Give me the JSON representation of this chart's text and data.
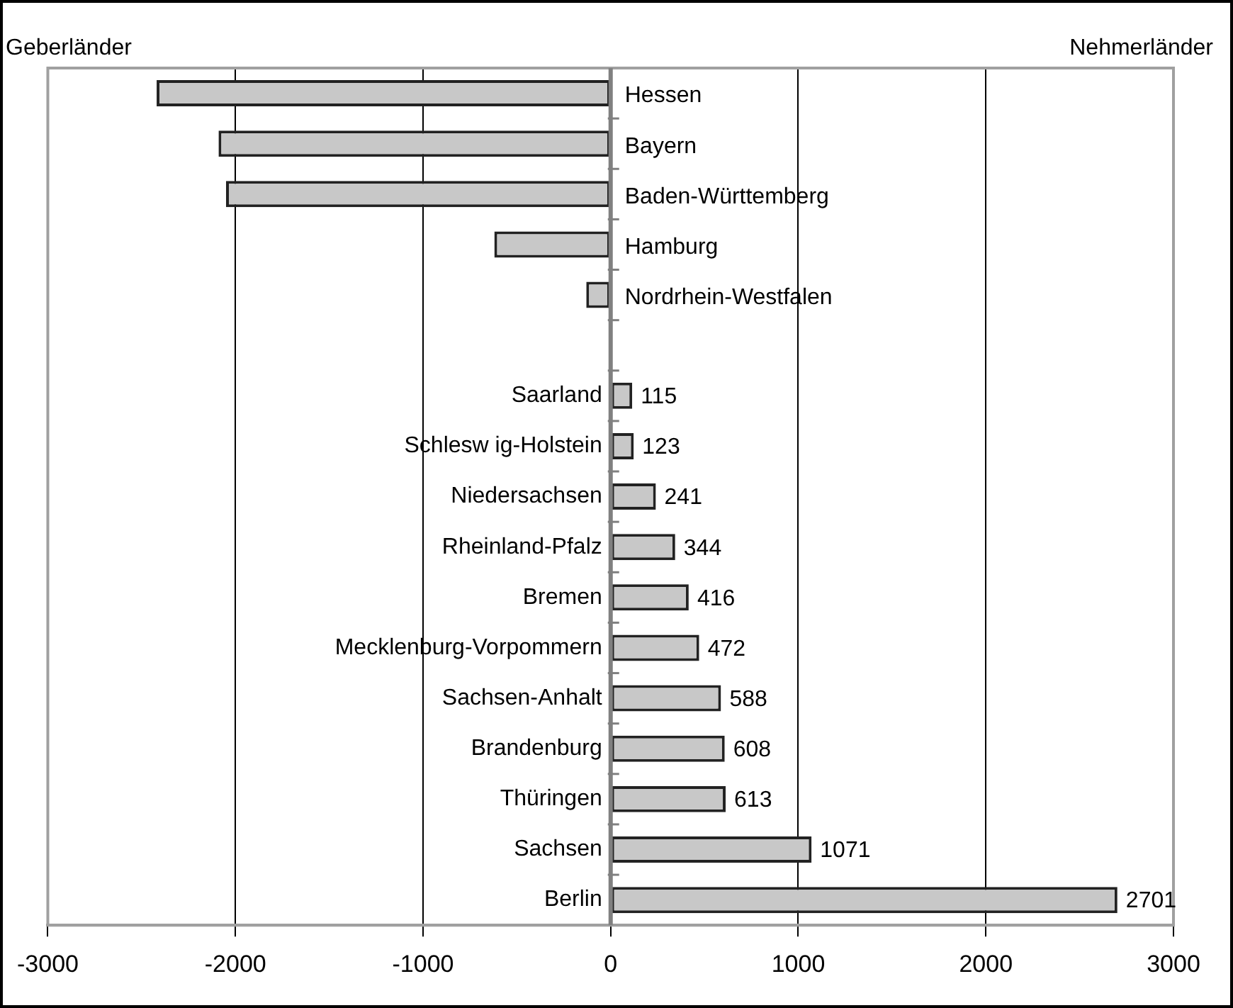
{
  "chart_data": {
    "type": "bar",
    "orientation": "horizontal",
    "categories": [
      "Hessen",
      "Bayern",
      "Baden-Württemberg",
      "Hamburg",
      "Nordrhein-Westfalen",
      null,
      "Saarland",
      "Schlesw ig-Holstein",
      "Niedersachsen",
      "Rheinland-Pfalz",
      "Bremen",
      "Mecklenburg-Vorpommern",
      "Sachsen-Anhalt",
      "Brandenburg",
      "Thüringen",
      "Sachsen",
      "Berlin"
    ],
    "values": [
      -2420,
      -2090,
      -2050,
      -620,
      -130,
      null,
      115,
      123,
      241,
      344,
      416,
      472,
      588,
      608,
      613,
      1071,
      2701
    ],
    "value_labels": [
      null,
      null,
      null,
      null,
      null,
      null,
      "115",
      "123",
      "241",
      "344",
      "416",
      "472",
      "588",
      "608",
      "613",
      "1071",
      "2701"
    ],
    "color": "#c8c8c8",
    "xlim": [
      -3000,
      3000
    ],
    "xticks": [
      -3000,
      -2000,
      -1000,
      0,
      1000,
      2000,
      3000
    ],
    "grid": "x",
    "annotations": [
      "Geberländer",
      "Nehmerländer"
    ]
  }
}
